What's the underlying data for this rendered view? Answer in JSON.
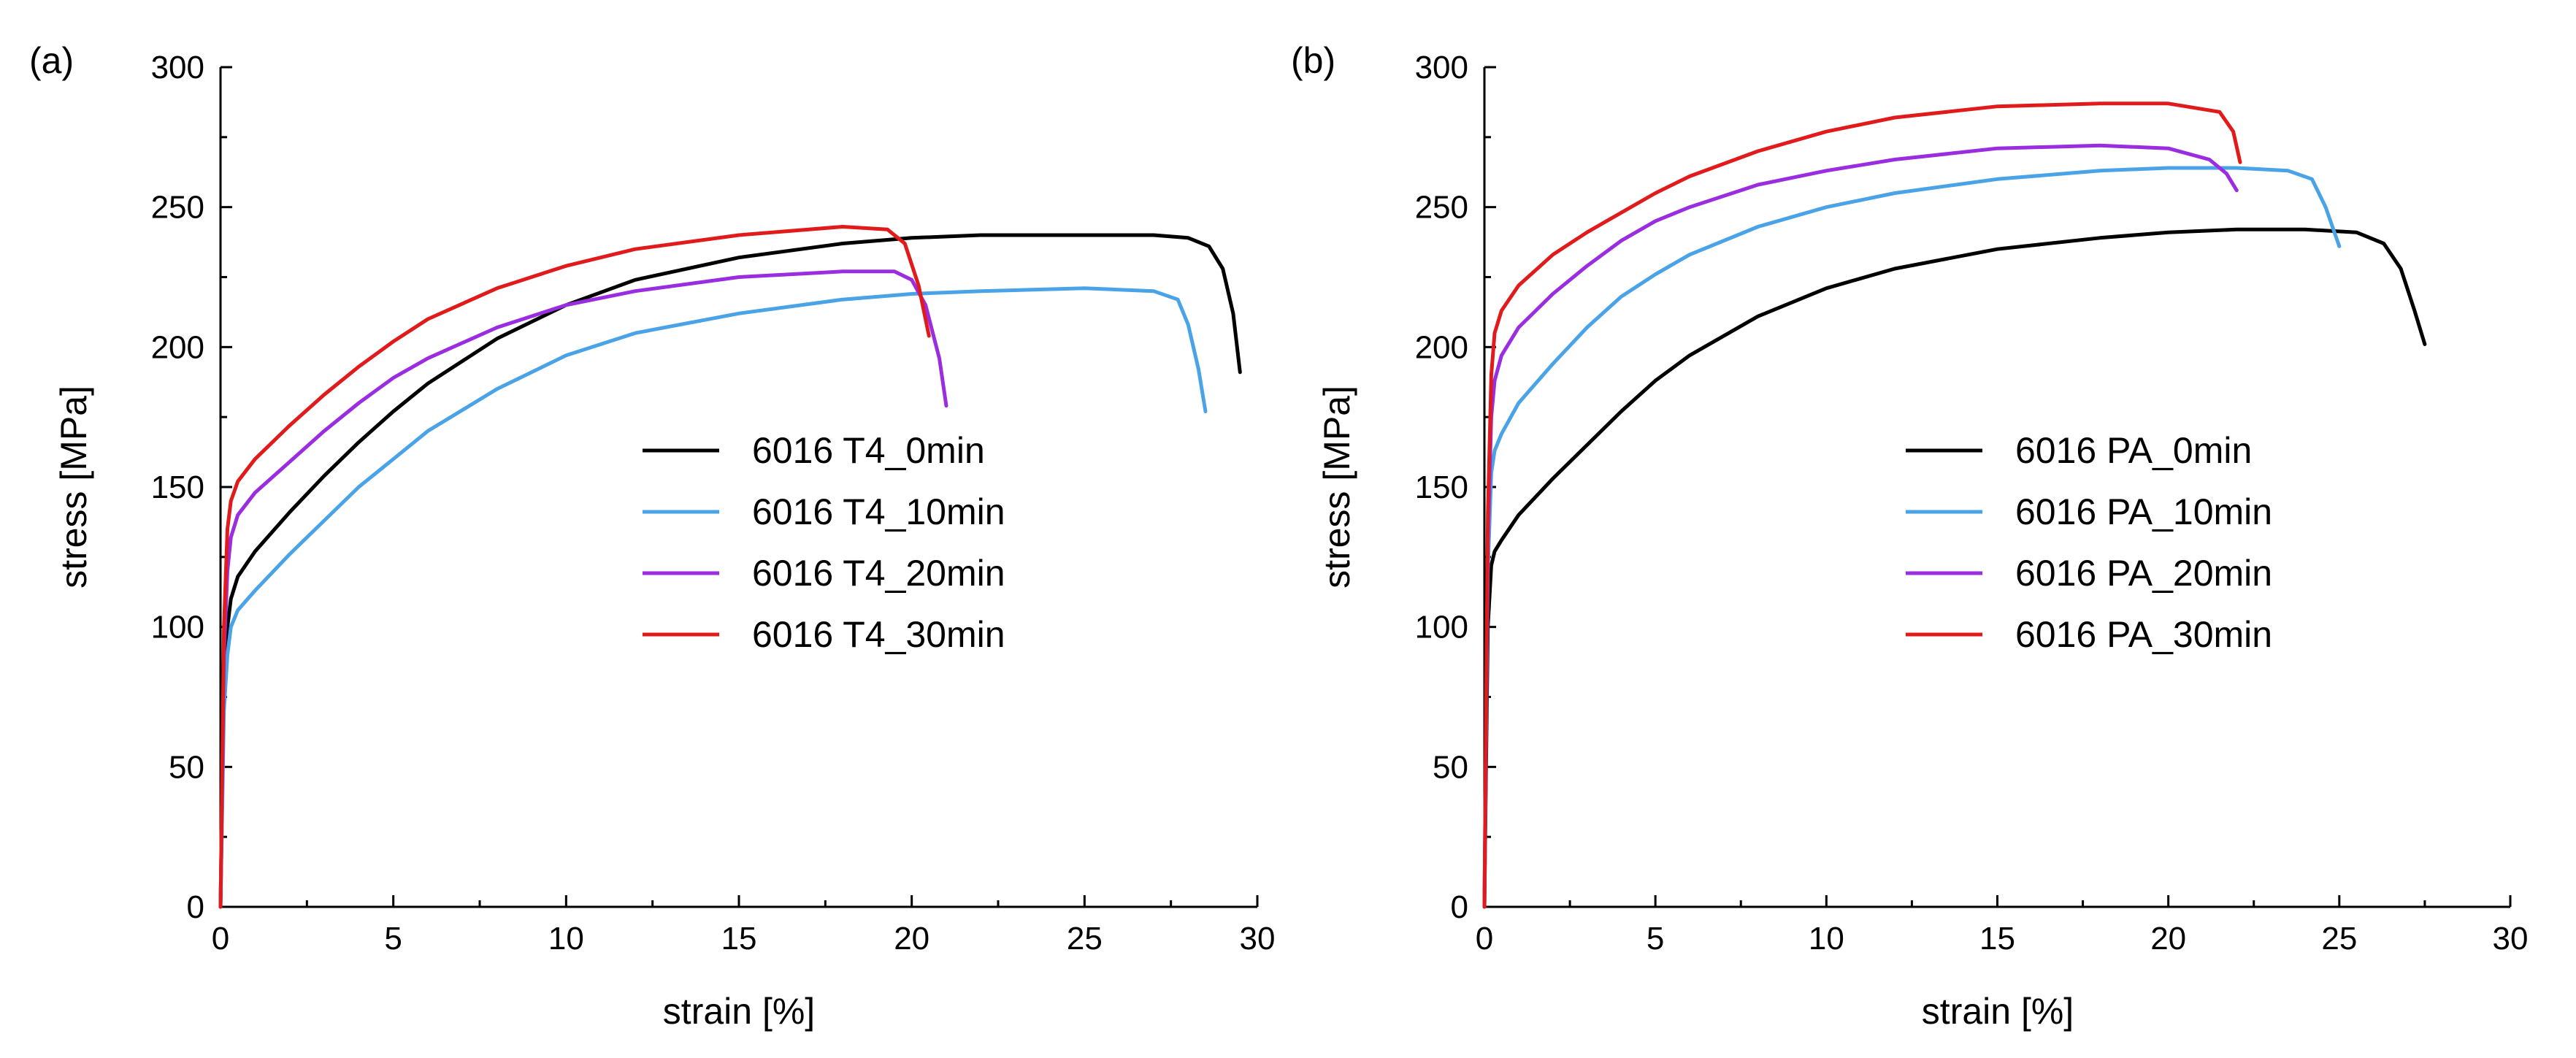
{
  "chart_data": [
    {
      "type": "line",
      "panel_label": "(a)",
      "xlabel": "strain [%]",
      "ylabel": "stress [MPa]",
      "xlim": [
        0,
        30
      ],
      "ylim": [
        0,
        300
      ],
      "xticks": [
        0,
        5,
        10,
        15,
        20,
        25,
        30
      ],
      "yticks": [
        0,
        50,
        100,
        150,
        200,
        250,
        300
      ],
      "grid": false,
      "legend_position": "center-right",
      "series": [
        {
          "name": "6016 T4_0min",
          "color": "#000000",
          "x": [
            0,
            0.05,
            0.1,
            0.2,
            0.3,
            0.5,
            1,
            2,
            3,
            4,
            5,
            6,
            8,
            10,
            12,
            15,
            18,
            20,
            22,
            25,
            27,
            28,
            28.6,
            29,
            29.3,
            29.5
          ],
          "y": [
            0,
            40,
            80,
            100,
            110,
            118,
            127,
            141,
            154,
            166,
            177,
            187,
            203,
            215,
            224,
            232,
            237,
            239,
            240,
            240,
            240,
            239,
            236,
            228,
            212,
            191
          ]
        },
        {
          "name": "6016 T4_10min",
          "color": "#4aa3e6",
          "x": [
            0,
            0.05,
            0.1,
            0.2,
            0.3,
            0.5,
            1,
            2,
            3,
            4,
            5,
            6,
            8,
            10,
            12,
            15,
            18,
            20,
            22,
            25,
            27,
            27.7,
            28,
            28.3,
            28.5
          ],
          "y": [
            0,
            35,
            70,
            90,
            100,
            106,
            113,
            126,
            138,
            150,
            160,
            170,
            185,
            197,
            205,
            212,
            217,
            219,
            220,
            221,
            220,
            217,
            208,
            192,
            177
          ]
        },
        {
          "name": "6016 T4_20min",
          "color": "#9a2de0",
          "x": [
            0,
            0.05,
            0.1,
            0.2,
            0.3,
            0.5,
            1,
            2,
            3,
            4,
            5,
            6,
            8,
            10,
            12,
            15,
            18,
            19.5,
            20,
            20.4,
            20.8,
            21
          ],
          "y": [
            0,
            45,
            90,
            120,
            132,
            140,
            148,
            159,
            170,
            180,
            189,
            196,
            207,
            215,
            220,
            225,
            227,
            227,
            224,
            215,
            196,
            179
          ]
        },
        {
          "name": "6016 T4_30min",
          "color": "#e11b1b",
          "x": [
            0,
            0.05,
            0.1,
            0.2,
            0.3,
            0.5,
            1,
            2,
            3,
            4,
            5,
            6,
            8,
            10,
            12,
            15,
            18,
            19.3,
            19.8,
            20.2,
            20.5
          ],
          "y": [
            0,
            50,
            100,
            135,
            145,
            152,
            160,
            172,
            183,
            193,
            202,
            210,
            221,
            229,
            235,
            240,
            243,
            242,
            237,
            222,
            204
          ]
        }
      ]
    },
    {
      "type": "line",
      "panel_label": "(b)",
      "xlabel": "strain [%]",
      "ylabel": "stress [MPa]",
      "xlim": [
        0,
        30
      ],
      "ylim": [
        0,
        300
      ],
      "xticks": [
        0,
        5,
        10,
        15,
        20,
        25,
        30
      ],
      "yticks": [
        0,
        50,
        100,
        150,
        200,
        250,
        300
      ],
      "grid": false,
      "legend_position": "center-right",
      "series": [
        {
          "name": "6016 PA_0min",
          "color": "#000000",
          "x": [
            0,
            0.05,
            0.1,
            0.2,
            0.3,
            0.5,
            1,
            2,
            3,
            4,
            5,
            6,
            8,
            10,
            12,
            15,
            18,
            20,
            22,
            24,
            25.5,
            26.3,
            26.8,
            27.2,
            27.5
          ],
          "y": [
            0,
            50,
            100,
            122,
            127,
            131,
            140,
            153,
            165,
            177,
            188,
            197,
            211,
            221,
            228,
            235,
            239,
            241,
            242,
            242,
            241,
            237,
            228,
            213,
            201
          ]
        },
        {
          "name": "6016 PA_10min",
          "color": "#4aa3e6",
          "x": [
            0,
            0.05,
            0.1,
            0.2,
            0.3,
            0.5,
            1,
            2,
            3,
            4,
            5,
            6,
            8,
            10,
            12,
            15,
            18,
            20,
            22,
            23.5,
            24.2,
            24.6,
            25
          ],
          "y": [
            0,
            60,
            120,
            155,
            163,
            169,
            180,
            194,
            207,
            218,
            226,
            233,
            243,
            250,
            255,
            260,
            263,
            264,
            264,
            263,
            260,
            250,
            236
          ]
        },
        {
          "name": "6016 PA_20min",
          "color": "#9a2de0",
          "x": [
            0,
            0.05,
            0.1,
            0.2,
            0.3,
            0.5,
            1,
            2,
            3,
            4,
            5,
            6,
            8,
            10,
            12,
            15,
            18,
            20,
            21.2,
            21.7,
            22
          ],
          "y": [
            0,
            65,
            130,
            175,
            188,
            197,
            207,
            219,
            229,
            238,
            245,
            250,
            258,
            263,
            267,
            271,
            272,
            271,
            267,
            262,
            256
          ]
        },
        {
          "name": "6016 PA_30min",
          "color": "#e11b1b",
          "x": [
            0,
            0.05,
            0.1,
            0.2,
            0.3,
            0.5,
            1,
            2,
            3,
            4,
            5,
            6,
            8,
            10,
            12,
            15,
            18,
            20,
            21.5,
            21.9,
            22.1
          ],
          "y": [
            0,
            70,
            140,
            190,
            205,
            213,
            222,
            233,
            241,
            248,
            255,
            261,
            270,
            277,
            282,
            286,
            287,
            287,
            284,
            277,
            266
          ]
        }
      ]
    }
  ]
}
